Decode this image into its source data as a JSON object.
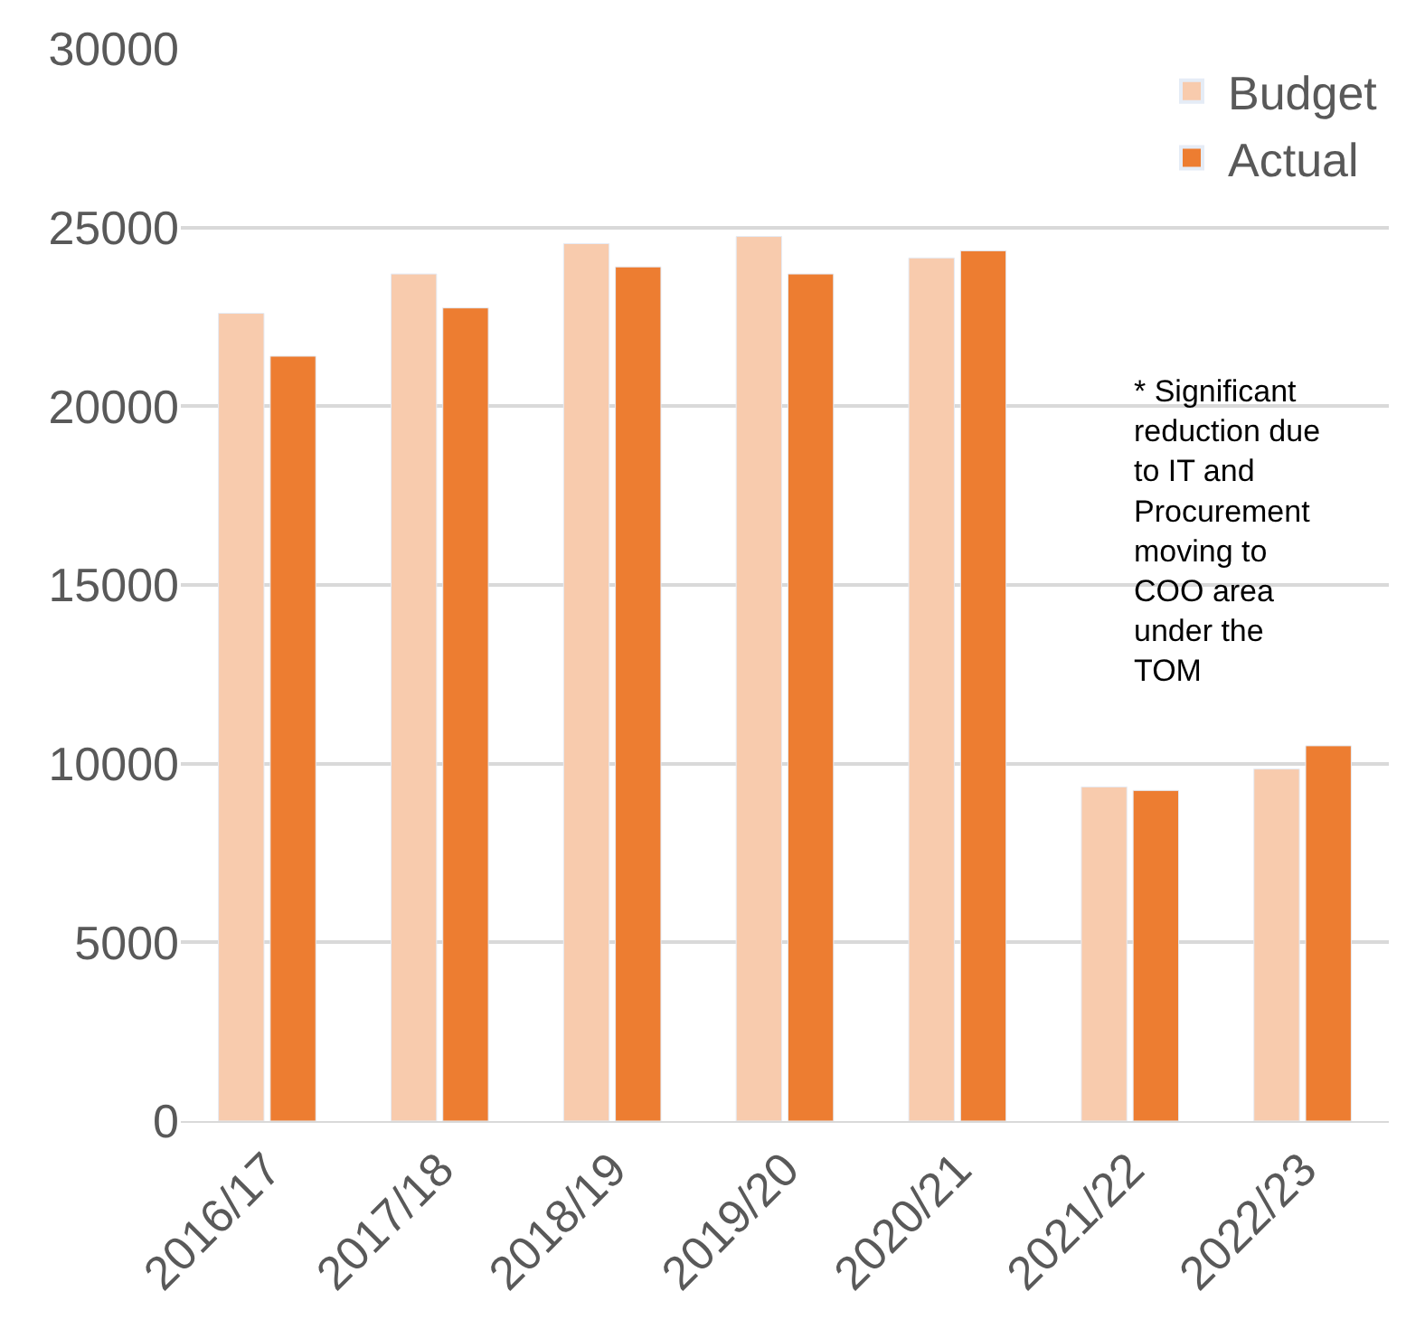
{
  "chart_data": {
    "type": "bar",
    "categories": [
      "2016/17",
      "2017/18",
      "2018/19",
      "2019/20",
      "2020/21",
      "2021/22",
      "2022/23"
    ],
    "series": [
      {
        "name": "Budget",
        "color": "#f8cbad",
        "values": [
          22600,
          23700,
          24550,
          24750,
          24150,
          9350,
          9850
        ]
      },
      {
        "name": "Actual",
        "color": "#ed7d31",
        "values": [
          21400,
          22750,
          23900,
          23700,
          24350,
          9250,
          10500
        ]
      }
    ],
    "ylim": [
      0,
      30000
    ],
    "yticks": [
      0,
      5000,
      10000,
      15000,
      20000,
      25000,
      30000
    ],
    "grid": "y",
    "legend": "top right",
    "annotations": [
      "* Significant\nreduction due\nto IT and\nProcurement\nmoving to\nCOO area\nunder the\nTOM"
    ]
  }
}
